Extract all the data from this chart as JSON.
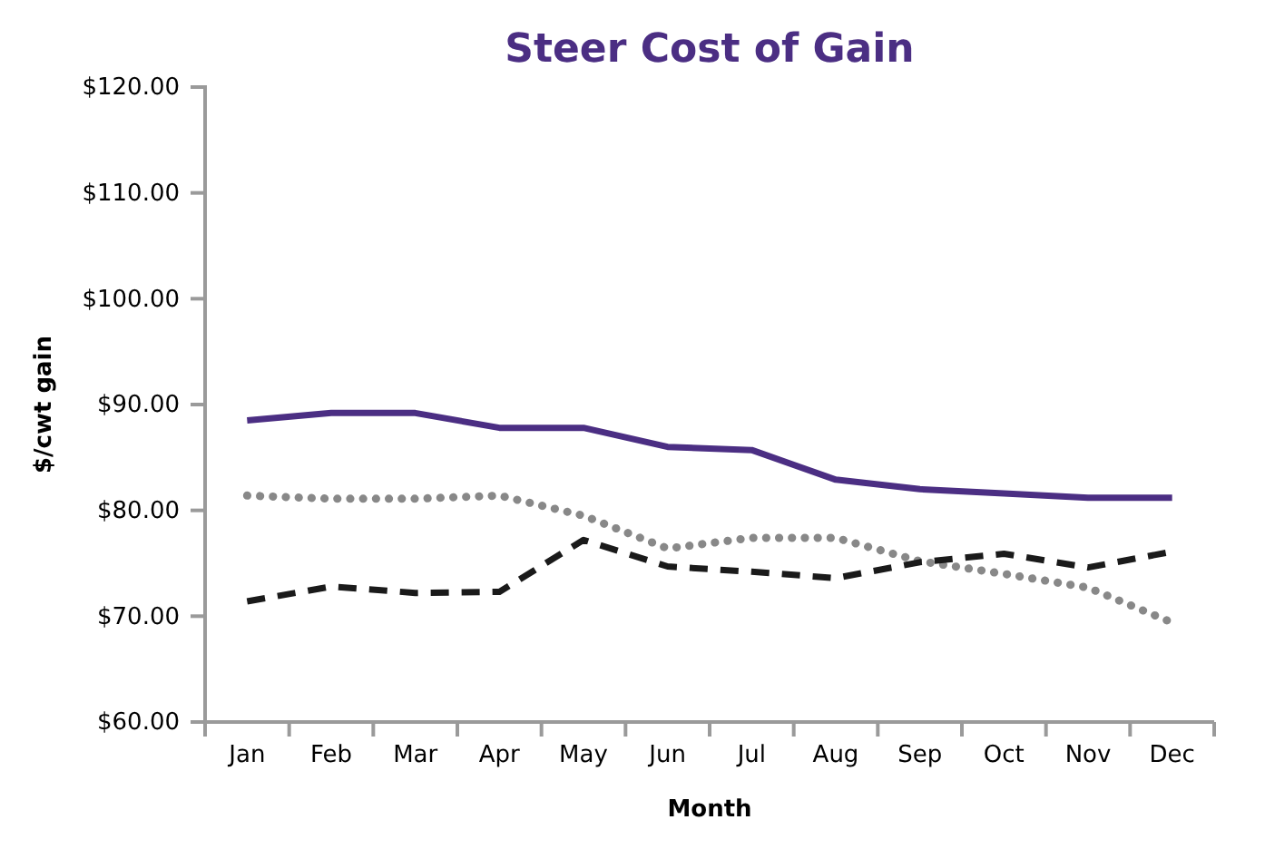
{
  "chart_data": {
    "type": "line",
    "title": "Steer Cost of Gain",
    "xlabel": "Month",
    "ylabel": "$/cwt gain",
    "categories": [
      "Jan",
      "Feb",
      "Mar",
      "Apr",
      "May",
      "Jun",
      "Jul",
      "Aug",
      "Sep",
      "Oct",
      "Nov",
      "Dec"
    ],
    "ylim": [
      60,
      120
    ],
    "yticks": [
      {
        "value": 60,
        "label": "$60.00"
      },
      {
        "value": 70,
        "label": "$70.00"
      },
      {
        "value": 80,
        "label": "$80.00"
      },
      {
        "value": 90,
        "label": "$90.00"
      },
      {
        "value": 100,
        "label": "$100.00"
      },
      {
        "value": 110,
        "label": "$110.00"
      },
      {
        "value": 120,
        "label": "$120.00"
      }
    ],
    "grid": false,
    "marker": "none",
    "series": [
      {
        "color": "#4b2e83",
        "line_style": "solid",
        "values": [
          88.5,
          89.2,
          89.2,
          87.8,
          87.8,
          86.0,
          85.7,
          82.9,
          82.0,
          81.6,
          81.2,
          81.2
        ]
      },
      {
        "color": "#888888",
        "line_style": "dotted",
        "values": [
          81.4,
          81.1,
          81.1,
          81.4,
          79.5,
          76.4,
          77.4,
          77.4,
          75.2,
          74.0,
          72.7,
          69.4
        ]
      },
      {
        "color": "#1a1a1a",
        "line_style": "dashed",
        "values": [
          71.4,
          72.8,
          72.2,
          72.3,
          77.2,
          74.7,
          74.2,
          73.6,
          75.1,
          75.9,
          74.6,
          76.1
        ]
      }
    ]
  }
}
